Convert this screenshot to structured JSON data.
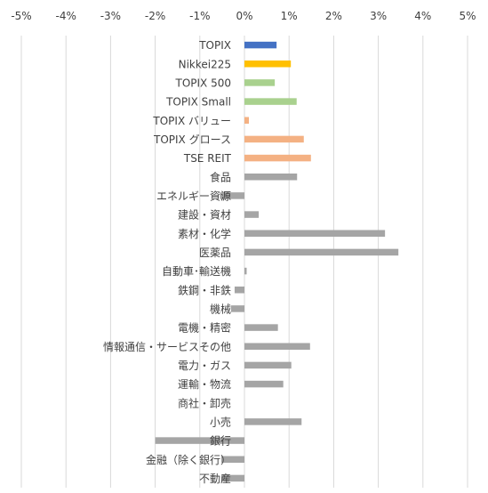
{
  "chart_data": {
    "type": "bar",
    "orientation": "horizontal",
    "xlim": [
      -5,
      5
    ],
    "x_ticks": [
      -5,
      -4,
      -3,
      -2,
      -1,
      0,
      1,
      2,
      3,
      4,
      5
    ],
    "x_tick_labels": [
      "-5%",
      "-4%",
      "-3%",
      "-2%",
      "-1%",
      "0%",
      "1%",
      "2%",
      "3%",
      "4%",
      "5%"
    ],
    "x_axis_position": "top",
    "grid": "vertical",
    "legend": "none",
    "title": "",
    "xlabel": "",
    "ylabel": "",
    "categories": [
      "TOPIX",
      "Nikkei225",
      "TOPIX 500",
      "TOPIX Small",
      "TOPIX バリュー",
      "TOPIX グロース",
      "TSE REIT",
      "食品",
      "エネルギー資源",
      "建設・資材",
      "素材・化学",
      "医薬品",
      "自動車･輸送機",
      "鉄鋼・非鉄",
      "機械",
      "電機・精密",
      "情報通信・サービスその他",
      "電力・ガス",
      "運輸・物流",
      "商社・卸売",
      "小売",
      "銀行",
      "金融（除く銀行）",
      "不動産"
    ],
    "values": [
      0.72,
      1.04,
      0.68,
      1.17,
      0.1,
      1.33,
      1.49,
      1.18,
      -0.55,
      0.32,
      3.15,
      3.45,
      0.05,
      -0.22,
      -0.3,
      0.75,
      1.47,
      1.05,
      0.87,
      0.0,
      1.28,
      -2.0,
      -0.52,
      -0.52
    ],
    "colors": [
      "#4472C4",
      "#FFC000",
      "#A9D18E",
      "#A9D18E",
      "#F4B183",
      "#F4B183",
      "#F4B183",
      "#A5A5A5",
      "#A5A5A5",
      "#A5A5A5",
      "#A5A5A5",
      "#A5A5A5",
      "#A5A5A5",
      "#A5A5A5",
      "#A5A5A5",
      "#A5A5A5",
      "#A5A5A5",
      "#A5A5A5",
      "#A5A5A5",
      "#A5A5A5",
      "#A5A5A5",
      "#A5A5A5",
      "#A5A5A5",
      "#A5A5A5"
    ],
    "gridline_color": "#D9D9D9"
  }
}
